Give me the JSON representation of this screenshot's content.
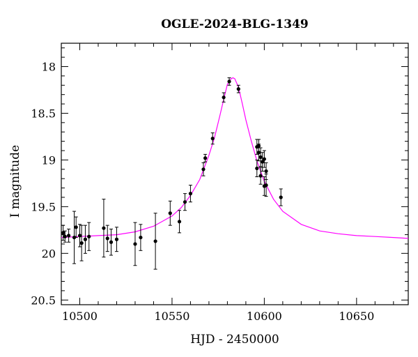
{
  "chart_data": {
    "type": "scatter",
    "title": "OGLE-2024-BLG-1349",
    "xlabel": "HJD - 2450000",
    "ylabel": "I magnitude",
    "xlim": [
      10490,
      10678
    ],
    "ylim": [
      20.55,
      17.75
    ],
    "y_inverted": true,
    "grid": false,
    "x_major_ticks": [
      10500,
      10550,
      10600,
      10650
    ],
    "x_tick_labels": [
      "10500",
      "10550",
      "10600",
      "10650"
    ],
    "x_minor_step": 10,
    "y_major_ticks": [
      18,
      18.5,
      19,
      19.5,
      20,
      20.5
    ],
    "y_tick_labels": [
      "18",
      "18.5",
      "19",
      "19.5",
      "20",
      "20.5"
    ],
    "y_minor_step": 0.1,
    "colors": {
      "model": "#ff00ff",
      "points": "#000000"
    },
    "model": {
      "name": "",
      "x": [
        10490,
        10500,
        10510,
        10520,
        10530,
        10540,
        10550,
        10555,
        10560,
        10565,
        10570,
        10573,
        10576,
        10578,
        10580,
        10582,
        10583,
        10584,
        10586,
        10588,
        10590,
        10593,
        10596,
        10600,
        10605,
        10610,
        10620,
        10630,
        10640,
        10650,
        10660,
        10670,
        10678
      ],
      "y": [
        19.83,
        19.82,
        19.81,
        19.8,
        19.77,
        19.71,
        19.6,
        19.51,
        19.38,
        19.21,
        18.95,
        18.76,
        18.52,
        18.35,
        18.19,
        18.13,
        18.12,
        18.13,
        18.22,
        18.39,
        18.57,
        18.8,
        19.01,
        19.23,
        19.42,
        19.55,
        19.69,
        19.76,
        19.79,
        19.81,
        19.82,
        19.83,
        19.84
      ]
    },
    "points": {
      "name": "",
      "x": [
        10491,
        10492,
        10494,
        10497,
        10498,
        10500,
        10501,
        10503,
        10505,
        10513,
        10515,
        10517,
        10520,
        10530,
        10533,
        10541,
        10549,
        10554,
        10557,
        10560,
        10567,
        10568,
        10572,
        10578,
        10581,
        10586,
        10596,
        10596,
        10597,
        10597,
        10598,
        10598,
        10599,
        10600,
        10600,
        10601,
        10601,
        10609
      ],
      "y": [
        19.78,
        19.82,
        19.81,
        19.83,
        19.72,
        19.81,
        19.89,
        19.85,
        19.82,
        19.73,
        19.84,
        19.88,
        19.85,
        19.9,
        19.83,
        19.87,
        19.57,
        19.66,
        19.45,
        19.36,
        19.1,
        18.98,
        18.77,
        18.33,
        18.16,
        18.24,
        18.86,
        19.09,
        18.85,
        18.92,
        18.97,
        19.17,
        19.02,
        18.99,
        19.28,
        19.12,
        19.27,
        19.4
      ],
      "err": [
        0.08,
        0.06,
        0.07,
        0.28,
        0.11,
        0.12,
        0.19,
        0.15,
        0.15,
        0.31,
        0.14,
        0.14,
        0.13,
        0.23,
        0.14,
        0.3,
        0.13,
        0.12,
        0.09,
        0.09,
        0.07,
        0.04,
        0.06,
        0.05,
        0.04,
        0.04,
        0.08,
        0.09,
        0.07,
        0.09,
        0.1,
        0.09,
        0.1,
        0.09,
        0.1,
        0.09,
        0.12,
        0.09
      ]
    }
  }
}
